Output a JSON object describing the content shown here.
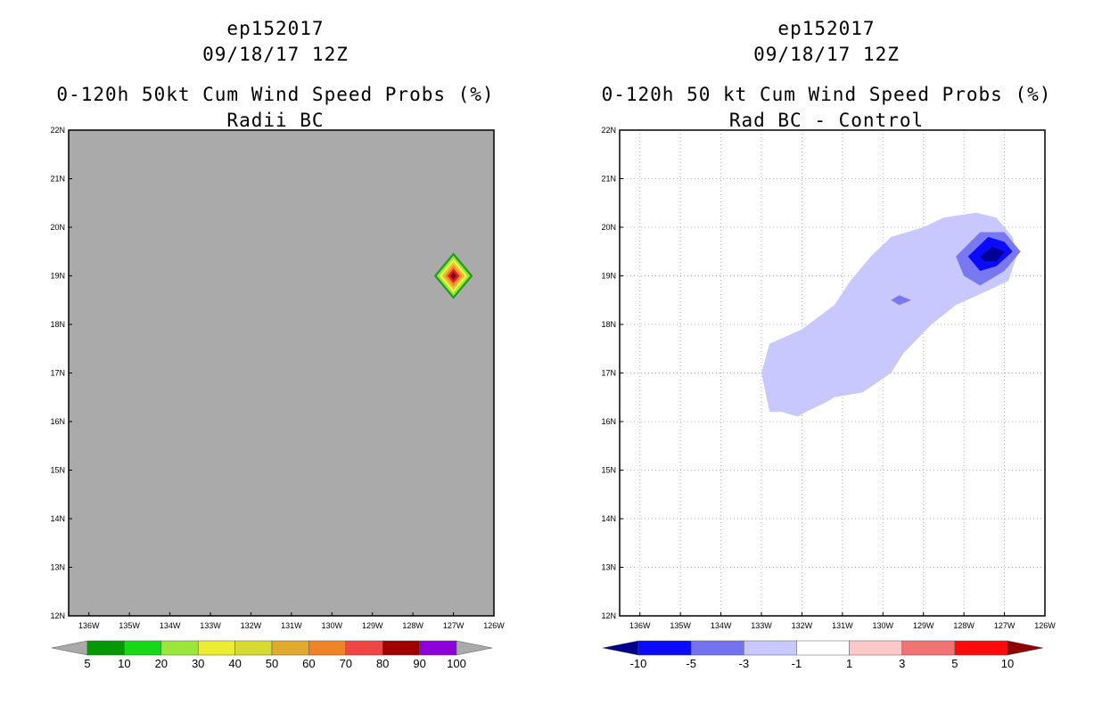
{
  "chart_data": [
    {
      "type": "heatmap",
      "title_lines": [
        "ep152017",
        "09/18/17 12Z",
        "0-120h 50kt Cum Wind Speed Probs (%)",
        "Radii BC"
      ],
      "xlabel": "",
      "ylabel": "",
      "x_ticks": [
        "136W",
        "135W",
        "134W",
        "133W",
        "132W",
        "131W",
        "130W",
        "129W",
        "128W",
        "127W",
        "126W"
      ],
      "y_ticks": [
        "22N",
        "21N",
        "20N",
        "19N",
        "18N",
        "17N",
        "16N",
        "15N",
        "14N",
        "13N",
        "12N"
      ],
      "xlim": [
        -136.5,
        -126
      ],
      "ylim": [
        12,
        22
      ],
      "grid": false,
      "background_color": "#aaaaaa",
      "features": [
        {
          "kind": "diamond",
          "center_lon": -127.0,
          "center_lat": 19.0,
          "radius_deg": 0.48,
          "ring_colors": [
            "#1ea01e",
            "#9ae637",
            "#f0f050",
            "#e6be2e",
            "#f08c28",
            "#e61e28",
            "#a00000"
          ],
          "peak_value": 100
        }
      ],
      "colorbar": {
        "levels": [
          "5",
          "10",
          "20",
          "30",
          "40",
          "50",
          "60",
          "70",
          "80",
          "90",
          "100"
        ],
        "colors": [
          "#a9a9a9",
          "#049904",
          "#16d816",
          "#9be63b",
          "#ecec31",
          "#d9d933",
          "#e0aa2e",
          "#ef8427",
          "#f04545",
          "#a00000",
          "#8d01d8",
          "#aaaaaa"
        ]
      }
    },
    {
      "type": "heatmap",
      "title_lines": [
        "ep152017",
        "09/18/17 12Z",
        "0-120h 50 kt Cum Wind Speed Probs (%)",
        "Rad BC - Control"
      ],
      "xlabel": "",
      "ylabel": "",
      "x_ticks": [
        "136W",
        "135W",
        "134W",
        "133W",
        "132W",
        "131W",
        "130W",
        "129W",
        "128W",
        "127W",
        "126W"
      ],
      "y_ticks": [
        "22N",
        "21N",
        "20N",
        "19N",
        "18N",
        "17N",
        "16N",
        "15N",
        "14N",
        "13N",
        "12N"
      ],
      "xlim": [
        -136.5,
        -126
      ],
      "ylim": [
        12,
        22
      ],
      "grid": true,
      "background_color": "#ffffff",
      "features": [
        {
          "kind": "region",
          "range": "-3 to -1",
          "color": "#c8c8ff",
          "outline_lonlat": [
            [
              -133.0,
              17.0
            ],
            [
              -132.8,
              17.6
            ],
            [
              -132.0,
              17.9
            ],
            [
              -131.2,
              18.4
            ],
            [
              -130.8,
              18.9
            ],
            [
              -130.3,
              19.4
            ],
            [
              -129.8,
              19.8
            ],
            [
              -129.0,
              20.0
            ],
            [
              -128.5,
              20.2
            ],
            [
              -127.7,
              20.3
            ],
            [
              -127.2,
              20.2
            ],
            [
              -126.8,
              19.8
            ],
            [
              -126.7,
              19.4
            ],
            [
              -126.9,
              18.9
            ],
            [
              -127.4,
              18.7
            ],
            [
              -128.2,
              18.4
            ],
            [
              -128.8,
              18.0
            ],
            [
              -129.5,
              17.4
            ],
            [
              -129.8,
              17.0
            ],
            [
              -130.5,
              16.6
            ],
            [
              -131.2,
              16.5
            ],
            [
              -131.4,
              16.4
            ],
            [
              -131.9,
              16.2
            ],
            [
              -132.1,
              16.1
            ],
            [
              -132.5,
              16.2
            ],
            [
              -132.8,
              16.2
            ]
          ]
        },
        {
          "kind": "region",
          "range": "-5 to -3",
          "color": "#7878f0",
          "outline_lonlat": [
            [
              -128.2,
              19.4
            ],
            [
              -127.6,
              19.9
            ],
            [
              -127.0,
              19.9
            ],
            [
              -126.6,
              19.5
            ],
            [
              -127.0,
              19.1
            ],
            [
              -127.6,
              18.8
            ],
            [
              -128.0,
              19.0
            ]
          ]
        },
        {
          "kind": "region",
          "range": "-5 to -3",
          "color": "#7878f0",
          "outline_lonlat": [
            [
              -129.8,
              18.5
            ],
            [
              -129.6,
              18.6
            ],
            [
              -129.3,
              18.5
            ],
            [
              -129.6,
              18.4
            ]
          ]
        },
        {
          "kind": "region",
          "range": "-10 to -5",
          "color": "#0a0aff",
          "outline_lonlat": [
            [
              -127.9,
              19.4
            ],
            [
              -127.4,
              19.8
            ],
            [
              -127.0,
              19.7
            ],
            [
              -126.8,
              19.5
            ],
            [
              -127.2,
              19.2
            ],
            [
              -127.6,
              19.1
            ]
          ]
        },
        {
          "kind": "region",
          "range": "< -10",
          "color": "#000096",
          "outline_lonlat": [
            [
              -127.6,
              19.4
            ],
            [
              -127.3,
              19.6
            ],
            [
              -127.0,
              19.5
            ],
            [
              -127.2,
              19.3
            ],
            [
              -127.5,
              19.3
            ]
          ]
        }
      ],
      "colorbar": {
        "levels": [
          "-10",
          "-5",
          "-3",
          "-1",
          "1",
          "3",
          "5",
          "10"
        ],
        "colors": [
          "#00008f",
          "#0a0aff",
          "#7373f2",
          "#c8c8ff",
          "#ffffff",
          "#ffc8c8",
          "#f27373",
          "#ff0a0a",
          "#8f0000"
        ]
      }
    }
  ]
}
